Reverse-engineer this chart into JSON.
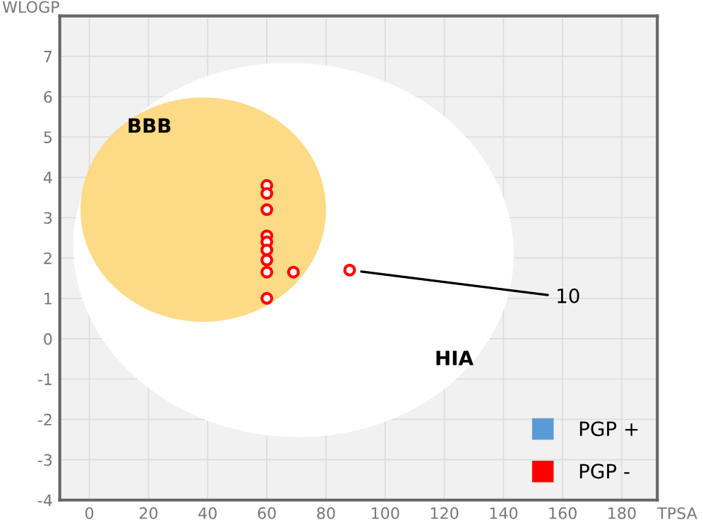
{
  "chart_data": {
    "type": "scatter",
    "xlabel": "TPSA",
    "ylabel": "WLOGP",
    "xlim": [
      -10,
      192
    ],
    "ylim": [
      -4,
      8
    ],
    "xticks": [
      0,
      20,
      40,
      60,
      80,
      100,
      120,
      140,
      160,
      180
    ],
    "yticks": [
      -4,
      -3,
      -2,
      -1,
      0,
      1,
      2,
      3,
      4,
      5,
      6,
      7
    ],
    "grid": true,
    "marker": "circle",
    "legend": "bottom right",
    "series": [
      {
        "name": "PGP +",
        "color": "#5b9bd5"
      },
      {
        "name": "PGP -",
        "color": "#ff0000",
        "x": [
          60,
          60,
          60,
          60,
          60,
          60,
          60,
          60,
          60,
          69,
          88
        ],
        "values": [
          3.8,
          3.6,
          3.2,
          2.55,
          2.4,
          2.2,
          1.95,
          1.65,
          1.0,
          1.65,
          1.7
        ]
      }
    ],
    "annotations": [
      "BBB",
      "HIA",
      {
        "text": "10",
        "x": 88,
        "y": 1.7
      }
    ]
  }
}
